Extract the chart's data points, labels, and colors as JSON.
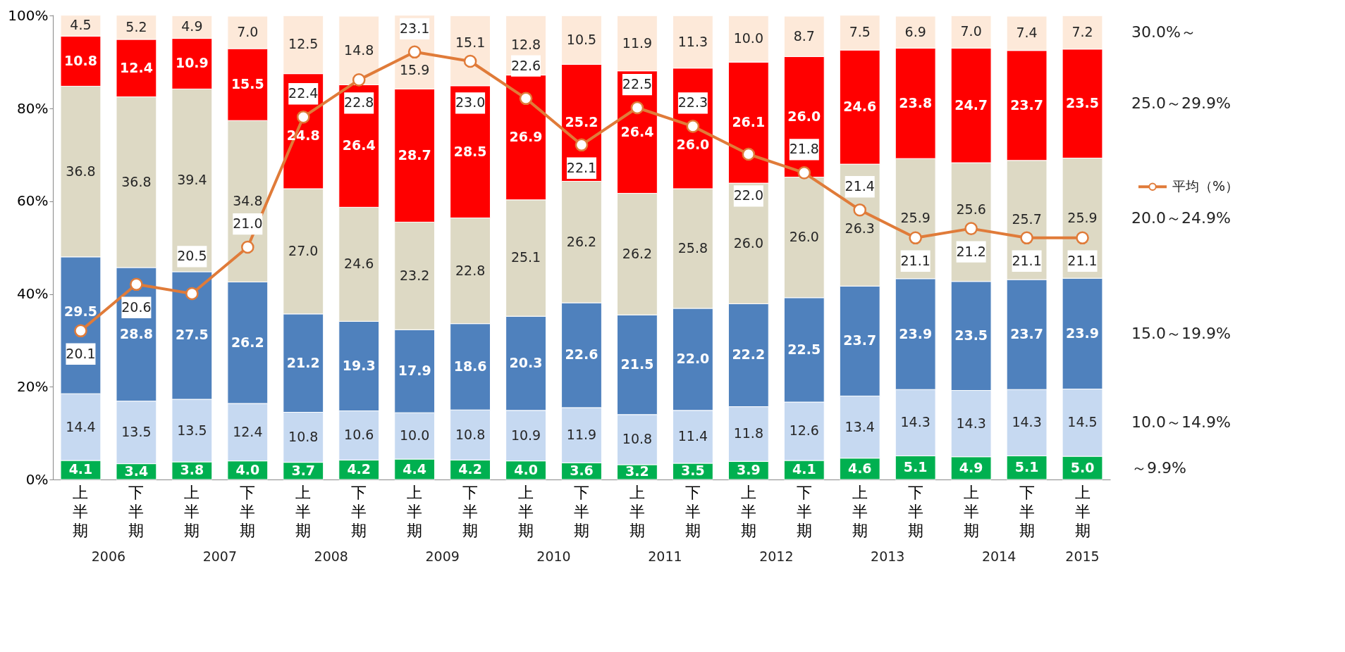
{
  "chart_data": {
    "type": "bar",
    "stacked": true,
    "data_labels": true,
    "grid": false,
    "legend": "right",
    "categories": [
      "上半期",
      "下半期",
      "上半期",
      "下半期",
      "上半期",
      "下半期",
      "上半期",
      "下半期",
      "上半期",
      "下半期",
      "上半期",
      "下半期",
      "上半期",
      "下半期",
      "上半期",
      "下半期",
      "上半期",
      "下半期",
      "上半期"
    ],
    "ylim": [
      0,
      100.2
    ],
    "yticks": [
      {
        "value": 0,
        "label": "0%"
      },
      {
        "value": 20,
        "label": "20%"
      },
      {
        "value": 40,
        "label": "40%"
      },
      {
        "value": 60,
        "label": "60%"
      },
      {
        "value": 80,
        "label": "80%"
      },
      {
        "value": 100,
        "label": "100%"
      }
    ],
    "y2lim": [
      18.5,
      23.5
    ],
    "series": [
      {
        "name": "～9.9%",
        "color": "#00b050",
        "values": [
          4.1,
          3.4,
          3.8,
          4.0,
          3.7,
          4.2,
          4.4,
          4.2,
          4.0,
          3.6,
          3.2,
          3.5,
          3.9,
          4.1,
          4.6,
          5.1,
          4.9,
          5.1,
          5.0
        ],
        "value_labels": [
          "4.1",
          "3.4",
          "3.8",
          "4.0",
          "3.7",
          "4.2",
          "4.4",
          "4.2",
          "4.0",
          "3.6",
          "3.2",
          "3.5",
          "3.9",
          "4.1",
          "4.6",
          "5.1",
          "4.9",
          "5.1",
          "5.0"
        ]
      },
      {
        "name": "10.0～14.9%",
        "color": "#c6d9f1",
        "values": [
          14.4,
          13.5,
          13.5,
          12.4,
          10.8,
          10.6,
          10.0,
          10.8,
          10.9,
          11.9,
          10.8,
          11.4,
          11.8,
          12.6,
          13.4,
          14.3,
          14.3,
          14.3,
          14.5
        ],
        "value_labels": [
          "14.4",
          "13.5",
          "13.5",
          "12.4",
          "10.8",
          "10.6",
          "10.0",
          "10.8",
          "10.9",
          "11.9",
          "10.8",
          "11.4",
          "11.8",
          "12.6",
          "13.4",
          "14.3",
          "14.3",
          "14.3",
          "14.5"
        ]
      },
      {
        "name": "15.0～19.9%",
        "color": "#4f81bd",
        "values": [
          29.5,
          28.8,
          27.5,
          26.2,
          21.2,
          19.3,
          17.9,
          18.6,
          20.3,
          22.6,
          21.5,
          22.0,
          22.2,
          22.5,
          23.7,
          23.9,
          23.5,
          23.7,
          23.9
        ],
        "value_labels": [
          "29.5",
          "28.8",
          "27.5",
          "26.2",
          "21.2",
          "19.3",
          "17.9",
          "18.6",
          "20.3",
          "22.6",
          "21.5",
          "22.0",
          "22.2",
          "22.5",
          "23.7",
          "23.9",
          "23.5",
          "23.7",
          "23.9"
        ]
      },
      {
        "name": "20.0～24.9%",
        "color": "#ddd9c4",
        "values": [
          36.8,
          36.8,
          39.4,
          34.8,
          27.0,
          24.6,
          23.2,
          22.8,
          25.1,
          26.2,
          26.2,
          25.8,
          26.0,
          26.0,
          26.3,
          25.9,
          25.6,
          25.7,
          25.9
        ],
        "value_labels": [
          "36.8",
          "36.8",
          "39.4",
          "34.8",
          "27.0",
          "24.6",
          "23.2",
          "22.8",
          "25.1",
          "26.2",
          "26.2",
          "25.8",
          "26.0",
          "26.0",
          "26.3",
          "25.9",
          "25.6",
          "25.7",
          "25.9"
        ]
      },
      {
        "name": "25.0～29.9%",
        "color": "#ff0000",
        "values": [
          10.8,
          12.4,
          10.9,
          15.5,
          24.8,
          26.4,
          28.7,
          28.5,
          26.9,
          25.2,
          26.4,
          26.0,
          26.1,
          26.0,
          24.6,
          23.8,
          24.7,
          23.7,
          23.5
        ],
        "value_labels": [
          "10.8",
          "12.4",
          "10.9",
          "15.5",
          "24.8",
          "26.4",
          "28.7",
          "28.5",
          "26.9",
          "25.2",
          "26.4",
          "26.0",
          "26.1",
          "26.0",
          "24.6",
          "23.8",
          "24.7",
          "23.7",
          "23.5"
        ]
      },
      {
        "name": "30.0%～",
        "color": "#fde9d9",
        "values": [
          4.5,
          5.2,
          4.9,
          7.0,
          12.5,
          14.8,
          15.9,
          15.1,
          12.8,
          10.5,
          11.9,
          11.3,
          10.0,
          8.7,
          7.5,
          6.9,
          7.0,
          7.4,
          7.2
        ],
        "value_labels": [
          "4.5",
          "5.2",
          "4.9",
          "7.0",
          "12.5",
          "14.8",
          "15.9",
          "15.1",
          "12.8",
          "10.5",
          "11.9",
          "11.3",
          "10.0",
          "8.7",
          "7.5",
          "6.9",
          "7.0",
          "7.4",
          "7.2"
        ]
      },
      {
        "name": "平均（%）",
        "type": "line",
        "axis": "y2",
        "marker": "circle",
        "color": "#e07b39",
        "values": [
          20.1,
          20.6,
          20.5,
          21.0,
          22.4,
          22.8,
          23.1,
          23.0,
          22.6,
          22.1,
          22.5,
          22.3,
          22.0,
          21.8,
          21.4,
          21.1,
          21.2,
          21.1,
          21.1
        ],
        "value_labels": [
          "20.1",
          "20.6",
          "20.5",
          "21.0",
          "22.4",
          "22.8",
          "23.1",
          "23.0",
          "22.6",
          "22.1",
          "22.5",
          "22.3",
          "22.0",
          "21.8",
          "21.4",
          "21.1",
          "21.2",
          "21.1",
          "21.1"
        ]
      }
    ],
    "annotations": [
      "2006",
      "2007",
      "2008",
      "2009",
      "2010",
      "2011",
      "2012",
      "2013",
      "2014",
      "2015"
    ]
  }
}
